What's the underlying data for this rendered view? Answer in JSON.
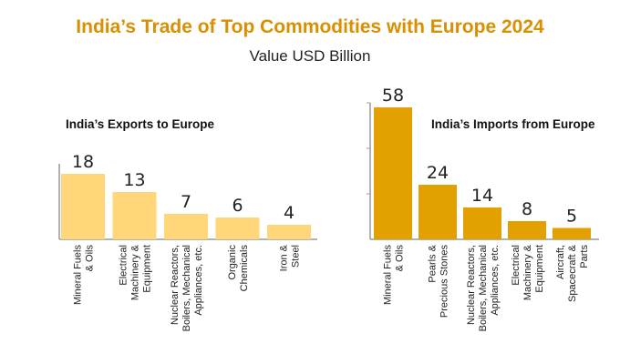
{
  "title": "India’s Trade of Top Commodities with Europe 2024",
  "subtitle": "Value USD Billion",
  "colors": {
    "title": "#d98f00",
    "exports_bar": "#ffd77a",
    "imports_bar": "#e2a100",
    "axis": "#999999"
  },
  "chart_data": [
    {
      "type": "bar",
      "title": "India’s Exports to Europe",
      "categories": [
        [
          "Mineral Fuels",
          "& Oils"
        ],
        [
          "Electrical",
          "Machinery &",
          "Equipment"
        ],
        [
          "Nuclear Reactors,",
          "Boilers, Mechanical",
          "Appliances, etc."
        ],
        [
          "Organic",
          "Chemicals"
        ],
        [
          "Iron &",
          "Steel"
        ]
      ],
      "values": [
        18,
        13,
        7,
        6,
        4
      ],
      "value_labels": [
        "18",
        "13",
        "7",
        "6",
        "4"
      ],
      "ylim": [
        0,
        20
      ],
      "grid": false,
      "legend": "none"
    },
    {
      "type": "bar",
      "title": "India’s Imports from Europe",
      "categories": [
        [
          "Mineral Fuels",
          "& Oils"
        ],
        [
          "Pearls &",
          "Precious Stones"
        ],
        [
          "Nuclear Reactors,",
          "Boilers, Mechanical",
          "Appliances, etc."
        ],
        [
          "Electrical",
          "Machinery &",
          "Equipment"
        ],
        [
          "Aircraft,",
          "Spacecraft &",
          "Parts"
        ]
      ],
      "values": [
        58,
        24,
        14,
        8,
        5
      ],
      "value_labels": [
        "58",
        "24",
        "14",
        "8",
        "5"
      ],
      "ylim": [
        0,
        60
      ],
      "grid": false,
      "legend": "none"
    }
  ]
}
